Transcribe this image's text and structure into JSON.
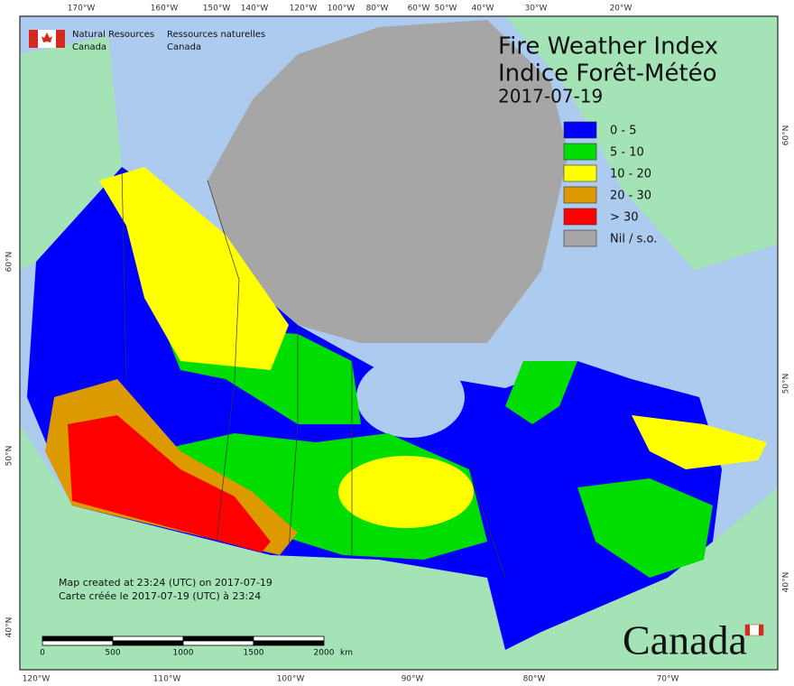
{
  "header": {
    "org_en": "Natural Resources",
    "org_en_2": "Canada",
    "org_fr": "Ressources naturelles",
    "org_fr_2": "Canada"
  },
  "title": {
    "line1": "Fire Weather Index",
    "line2": "Indice Forêt-Météo",
    "date": "2017-07-19"
  },
  "legend": [
    {
      "label": "0 - 5",
      "color": "#0000ff"
    },
    {
      "label": "5 - 10",
      "color": "#00dd00"
    },
    {
      "label": "10 - 20",
      "color": "#ffff00"
    },
    {
      "label": "20 - 30",
      "color": "#dd9900"
    },
    {
      "label": "> 30",
      "color": "#ff0000"
    },
    {
      "label": "Nil / s.o.",
      "color": "#a6a6a6"
    }
  ],
  "graticule": {
    "top": [
      "170°W",
      "160°W",
      "150°W",
      "140°W",
      "120°W",
      "100°W",
      "80°W",
      "60°W",
      "50°W",
      "40°W",
      "30°W",
      "20°W"
    ],
    "bottom": [
      "120°W",
      "110°W",
      "100°W",
      "90°W",
      "80°W",
      "70°W"
    ],
    "left": [
      "60°N",
      "50°N",
      "40°N"
    ],
    "right": [
      "60°N",
      "50°N",
      "40°N"
    ]
  },
  "notes": [
    "Map created at 23:24 (UTC) on 2017-07-19",
    "Carte créée le 2017-07-19 (UTC) à 23:24"
  ],
  "scale_bar": {
    "labels": [
      "0",
      "500",
      "1000",
      "1500",
      "2000"
    ],
    "unit": "km"
  },
  "wordmark": "Canada"
}
